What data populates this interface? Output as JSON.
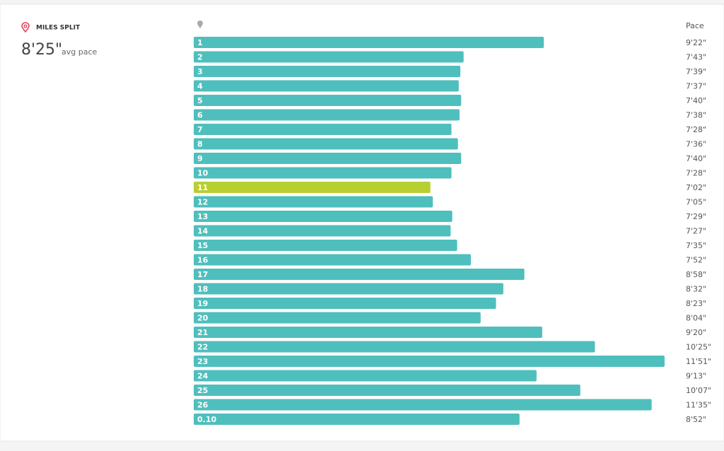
{
  "chart_data": {
    "type": "bar",
    "orientation": "horizontal",
    "title": "MILES SPLIT",
    "avg_pace": "8'25\"",
    "avg_pace_label": "avg pace",
    "value_header": "Pace",
    "categories": [
      "1",
      "2",
      "3",
      "4",
      "5",
      "6",
      "7",
      "8",
      "9",
      "10",
      "11",
      "12",
      "13",
      "14",
      "15",
      "16",
      "17",
      "18",
      "19",
      "20",
      "21",
      "22",
      "23",
      "24",
      "25",
      "26",
      "0.10"
    ],
    "values": [
      562,
      463,
      459,
      457,
      460,
      458,
      448,
      456,
      460,
      448,
      422,
      425,
      449,
      447,
      455,
      472,
      538,
      512,
      503,
      484,
      560,
      625,
      711,
      553,
      607,
      695,
      532
    ],
    "value_labels": [
      "9'22\"",
      "7'43\"",
      "7'39\"",
      "7'37\"",
      "7'40\"",
      "7'38\"",
      "7'28\"",
      "7'36\"",
      "7'40\"",
      "7'28\"",
      "7'02\"",
      "7'05\"",
      "7'29\"",
      "7'27\"",
      "7'35\"",
      "7'52\"",
      "8'58\"",
      "8'32\"",
      "8'23\"",
      "8'04\"",
      "9'20\"",
      "10'25\"",
      "11'51\"",
      "9'13\"",
      "10'07\"",
      "11'35\"",
      "8'52\""
    ],
    "colors": [
      "#4fbfbd",
      "#4fbfbd",
      "#4fbfbd",
      "#4fbfbd",
      "#4fbfbd",
      "#4fbfbd",
      "#4fbfbd",
      "#4fbfbd",
      "#4fbfbd",
      "#4fbfbd",
      "#b8cf32",
      "#4fbfbd",
      "#4fbfbd",
      "#4fbfbd",
      "#4fbfbd",
      "#4fbfbd",
      "#4fbfbd",
      "#4fbfbd",
      "#4fbfbd",
      "#4fbfbd",
      "#4fbfbd",
      "#4fbfbd",
      "#4fbfbd",
      "#4fbfbd",
      "#4fbfbd",
      "#4fbfbd",
      "#4fbfbd"
    ],
    "xlim": [
      130,
      711
    ]
  }
}
